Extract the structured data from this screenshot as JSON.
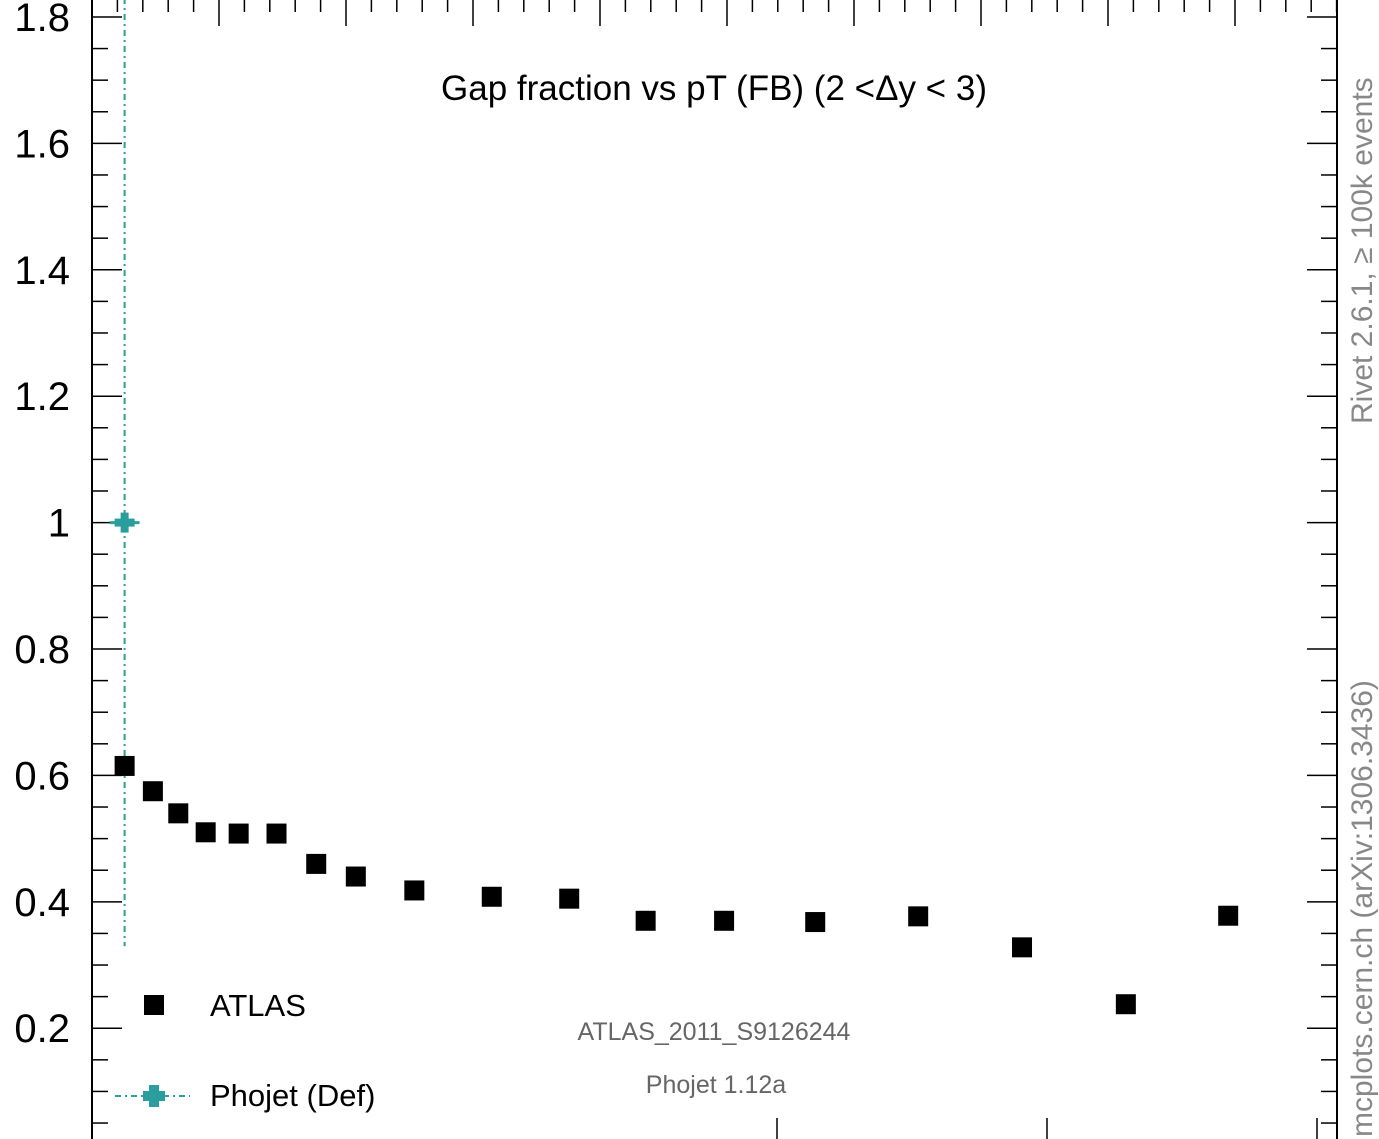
{
  "chart_data": {
    "type": "scatter",
    "title": "Gap fraction vs pT (FB) (2 <Δy < 3)",
    "xlabel": "",
    "ylabel": "",
    "xlim": [
      0,
      1
    ],
    "ylim": [
      0.02,
      1.83
    ],
    "y_ticks": [
      {
        "value": 0.2,
        "label": "0.2"
      },
      {
        "value": 0.4,
        "label": "0.4"
      },
      {
        "value": 0.6,
        "label": "0.6"
      },
      {
        "value": 0.8,
        "label": "0.8"
      },
      {
        "value": 1.0,
        "label": "1"
      },
      {
        "value": 1.2,
        "label": "1.2"
      },
      {
        "value": 1.4,
        "label": "1.4"
      },
      {
        "value": 1.6,
        "label": "1.6"
      },
      {
        "value": 1.8,
        "label": "1.8"
      }
    ],
    "series": [
      {
        "name": "ATLAS",
        "color": "#000000",
        "marker": "square",
        "points": [
          {
            "x": 0.0262,
            "y": 0.615
          },
          {
            "x": 0.0489,
            "y": 0.575
          },
          {
            "x": 0.0693,
            "y": 0.54
          },
          {
            "x": 0.0913,
            "y": 0.51
          },
          {
            "x": 0.1178,
            "y": 0.508
          },
          {
            "x": 0.1482,
            "y": 0.508
          },
          {
            "x": 0.1801,
            "y": 0.46
          },
          {
            "x": 0.2119,
            "y": 0.44
          },
          {
            "x": 0.2589,
            "y": 0.418
          },
          {
            "x": 0.3211,
            "y": 0.408
          },
          {
            "x": 0.3833,
            "y": 0.405
          },
          {
            "x": 0.4447,
            "y": 0.37
          },
          {
            "x": 0.5077,
            "y": 0.37
          },
          {
            "x": 0.5809,
            "y": 0.368
          },
          {
            "x": 0.6636,
            "y": 0.377
          },
          {
            "x": 0.747,
            "y": 0.328
          },
          {
            "x": 0.8304,
            "y": 0.238
          },
          {
            "x": 0.9126,
            "y": 0.378
          }
        ]
      },
      {
        "name": "Phojet (Def)",
        "color": "#2a9d9d",
        "marker": "cross",
        "points": [
          {
            "x": 0.0262,
            "y": 1.0,
            "xerr": 0.012
          }
        ]
      }
    ],
    "legend_position": "bottom-left",
    "grid": false
  },
  "annotations": {
    "analysis": "ATLAS_2011_S9126244",
    "generator": "Phojet 1.12a",
    "side_top": "Rivet 2.6.1, ≥ 100k events",
    "side_bottom": "mcplots.cern.ch (arXiv:1306.3436)"
  }
}
